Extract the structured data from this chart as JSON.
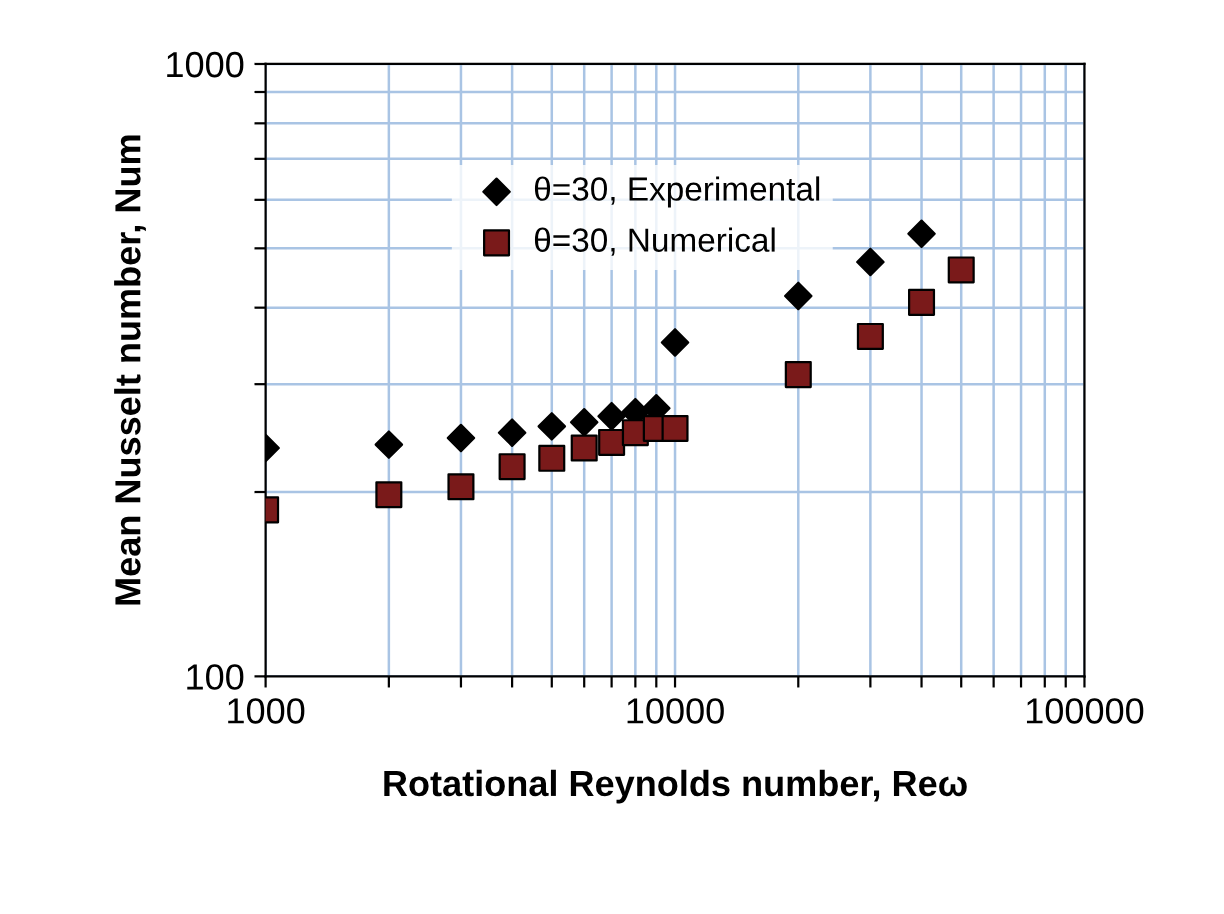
{
  "chart_data": {
    "type": "scatter",
    "xlabel": "Rotational Reynolds number, Reω",
    "ylabel": "Mean Nusselt number, Num",
    "log": "xy",
    "xlim": [
      1000,
      100000
    ],
    "xticks": [
      1000,
      {
        "value": 2000,
        "label": null
      },
      {
        "value": 3000,
        "label": null
      },
      {
        "value": 4000,
        "label": null
      },
      {
        "value": 5000,
        "label": null
      },
      {
        "value": 6000,
        "label": null
      },
      {
        "value": 7000,
        "label": null
      },
      {
        "value": 8000,
        "label": null
      },
      {
        "value": 9000,
        "label": null
      },
      10000,
      {
        "value": 20000,
        "label": null
      },
      {
        "value": 30000,
        "label": null
      },
      {
        "value": 40000,
        "label": null
      },
      {
        "value": 50000,
        "label": null
      },
      {
        "value": 60000,
        "label": null
      },
      {
        "value": 70000,
        "label": null
      },
      {
        "value": 80000,
        "label": null
      },
      {
        "value": 90000,
        "label": null
      },
      100000
    ],
    "ylim": [
      100,
      1000
    ],
    "yticks": [
      100,
      {
        "value": 200,
        "label": null
      },
      {
        "value": 300,
        "label": null
      },
      {
        "value": 400,
        "label": null
      },
      {
        "value": 500,
        "label": null
      },
      {
        "value": 600,
        "label": null
      },
      {
        "value": 700,
        "label": null
      },
      {
        "value": 800,
        "label": null
      },
      {
        "value": 900,
        "label": null
      },
      1000
    ],
    "grid": true,
    "legend": "top",
    "x": [
      1000,
      2000,
      3000,
      4000,
      5000,
      6000,
      7000,
      8000,
      9000,
      10000,
      20000,
      30000,
      40000,
      50000
    ],
    "series": [
      {
        "name": "θ=30, Experimental",
        "color": "#000000",
        "marker": "diamond",
        "values": [
          236,
          239,
          245,
          250,
          256,
          260,
          266,
          270,
          274,
          351,
          418,
          475,
          528,
          null
        ]
      },
      {
        "name": "θ=30, Numerical",
        "color": "#7a1a1a",
        "marker": "square",
        "values": [
          187,
          198,
          204,
          220,
          227,
          236,
          241,
          250,
          254,
          254,
          311,
          359,
          408,
          461
        ]
      }
    ]
  }
}
